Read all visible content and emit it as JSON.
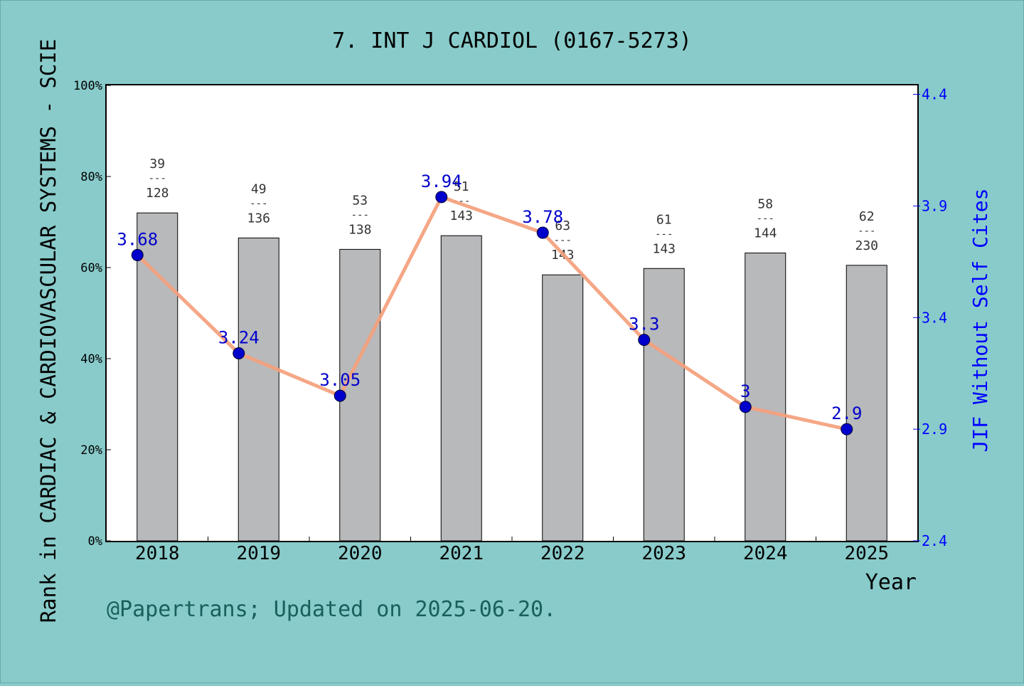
{
  "colors": {
    "background": "#88cbca",
    "plot_background": "#ffffff",
    "bar": "#b8b9bb",
    "line": "#f4a07c",
    "marker": "#0000cc",
    "jif_label": "#0000cc",
    "right_axis": "#0000ff",
    "footer": "#1a5f5c",
    "text": "#000000",
    "rank_label": "#333333"
  },
  "footer": "@Papertrans; Updated on 2025-06-20.",
  "chart_data": {
    "type": "bar",
    "title": "7. INT J CARDIOL (0167-5273)",
    "xlabel": "Year",
    "ylabel": "Rank in CARDIAC & CARDIOVASCULAR SYSTEMS - SCIE",
    "y2label": "JIF Without Self Cites",
    "categories": [
      "2018",
      "2019",
      "2020",
      "2021",
      "2022",
      "2023",
      "2024",
      "2025"
    ],
    "ranks": [
      39,
      49,
      53,
      51,
      63,
      61,
      58,
      62
    ],
    "totals": [
      128,
      136,
      138,
      143,
      143,
      143,
      144,
      230
    ],
    "rank_separator": "---",
    "bar_percentile": [
      72,
      66.5,
      64,
      67,
      58.4,
      59.8,
      63.2,
      60.5
    ],
    "ylim": [
      0,
      100
    ],
    "y_ticks": [
      "0%",
      "20%",
      "40%",
      "60%",
      "80%",
      "100%"
    ],
    "y_tick_values": [
      0,
      20,
      40,
      60,
      80,
      100
    ],
    "series": [
      {
        "name": "JIF Without Self Cites",
        "type": "line",
        "axis": "right",
        "values": [
          3.68,
          3.24,
          3.05,
          3.94,
          3.78,
          3.3,
          3,
          2.9
        ],
        "labels": [
          "3.68",
          "3.24",
          "3.05",
          "3.94",
          "3.78",
          "3.3",
          "3",
          "2.9"
        ]
      }
    ],
    "y2lim": [
      2.4,
      4.44
    ],
    "y2_ticks": [
      "2.4",
      "2.9",
      "3.4",
      "3.9",
      "4.4"
    ],
    "y2_tick_values": [
      2.4,
      2.9,
      3.4,
      3.9,
      4.4
    ],
    "grid": false
  }
}
